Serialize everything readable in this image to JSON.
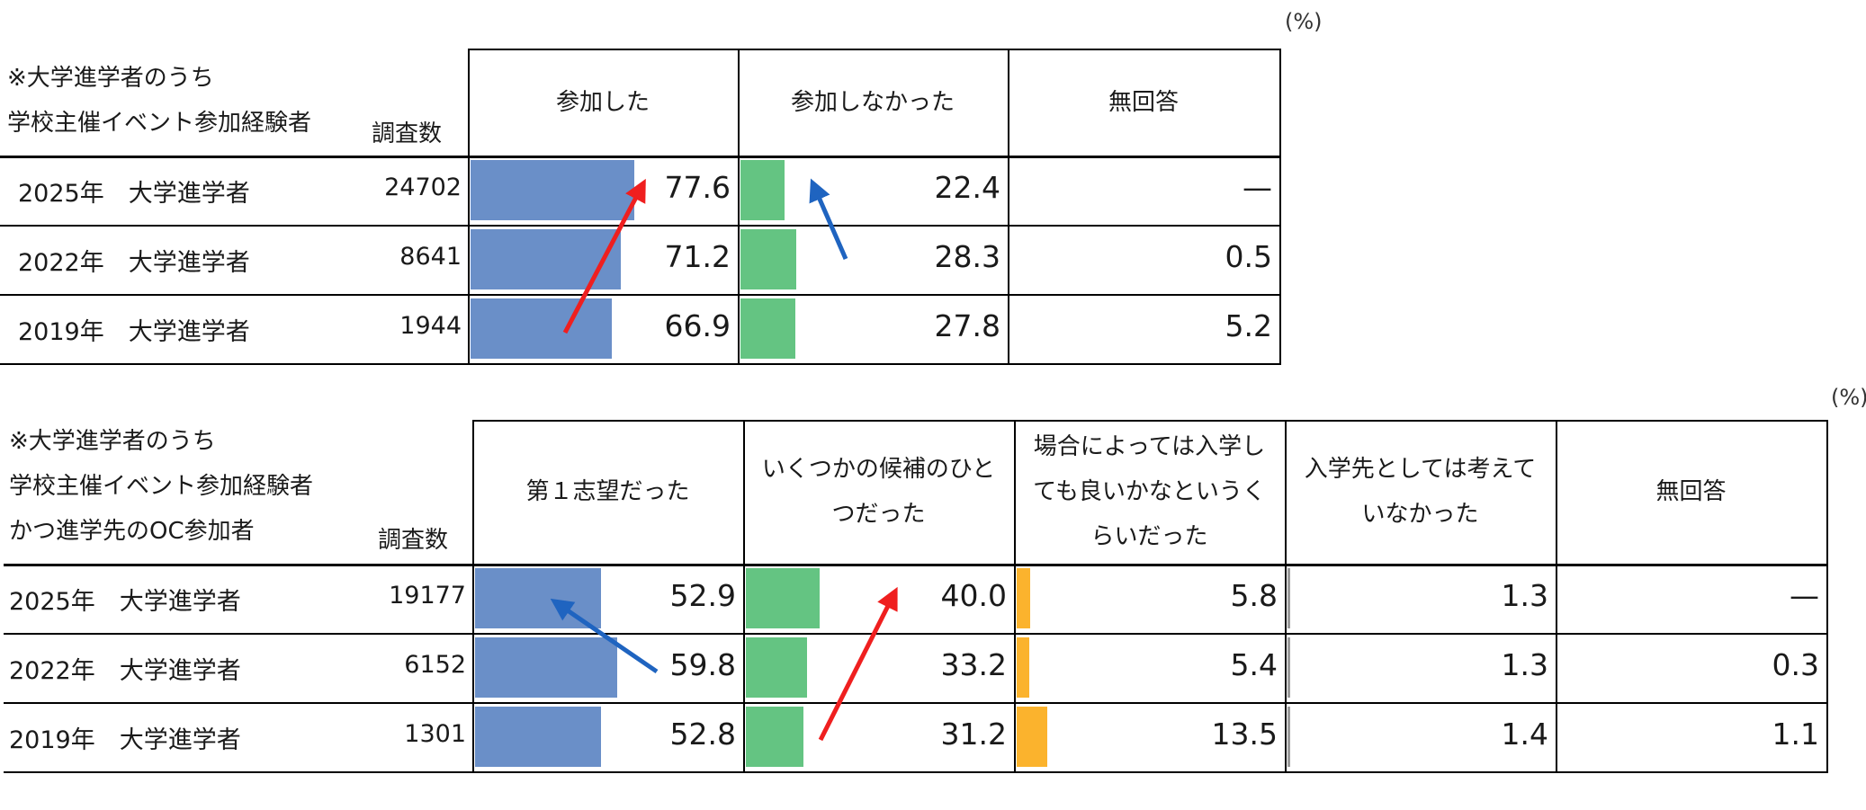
{
  "chart_data": [
    {
      "type": "table",
      "unit": "(%)",
      "title_lines": [
        "※大学進学者のうち",
        "学校主催イベント参加経験者"
      ],
      "count_header": "調査数",
      "columns": [
        "参加した",
        "参加しなかった",
        "無回答"
      ],
      "column_colors": [
        "#6a8fc8",
        "#64c482",
        null
      ],
      "rows": [
        {
          "label": "2025年　大学進学者",
          "count": "24702",
          "values": [
            "77.6",
            "22.4",
            "—"
          ]
        },
        {
          "label": "2022年　大学進学者",
          "count": "8641",
          "values": [
            "71.2",
            "28.3",
            "0.5"
          ]
        },
        {
          "label": "2019年　大学進学者",
          "count": "1944",
          "values": [
            "66.9",
            "27.8",
            "5.2"
          ]
        }
      ]
    },
    {
      "type": "table",
      "unit": "(%)",
      "title_lines": [
        "※大学進学者のうち",
        "学校主催イベント参加経験者",
        "かつ進学先のOC参加者"
      ],
      "count_header": "調査数",
      "columns": [
        "第１志望だった",
        "いくつかの候補のひと|つだった",
        "場合によっては入学し|ても良いかなというく|らいだった",
        "入学先としては考えて|いなかった",
        "無回答"
      ],
      "column_colors": [
        "#6a8fc8",
        "#64c482",
        "#fbb32d",
        "#9a9a9a",
        null
      ],
      "rows": [
        {
          "label": "2025年　大学進学者",
          "count": "19177",
          "values": [
            "52.9",
            "40.0",
            "5.8",
            "1.3",
            "—"
          ]
        },
        {
          "label": "2022年　大学進学者",
          "count": "6152",
          "values": [
            "59.8",
            "33.2",
            "5.4",
            "1.3",
            "0.3"
          ]
        },
        {
          "label": "2019年　大学進学者",
          "count": "1301",
          "values": [
            "52.8",
            "31.2",
            "13.5",
            "1.4",
            "1.1"
          ]
        }
      ]
    }
  ]
}
